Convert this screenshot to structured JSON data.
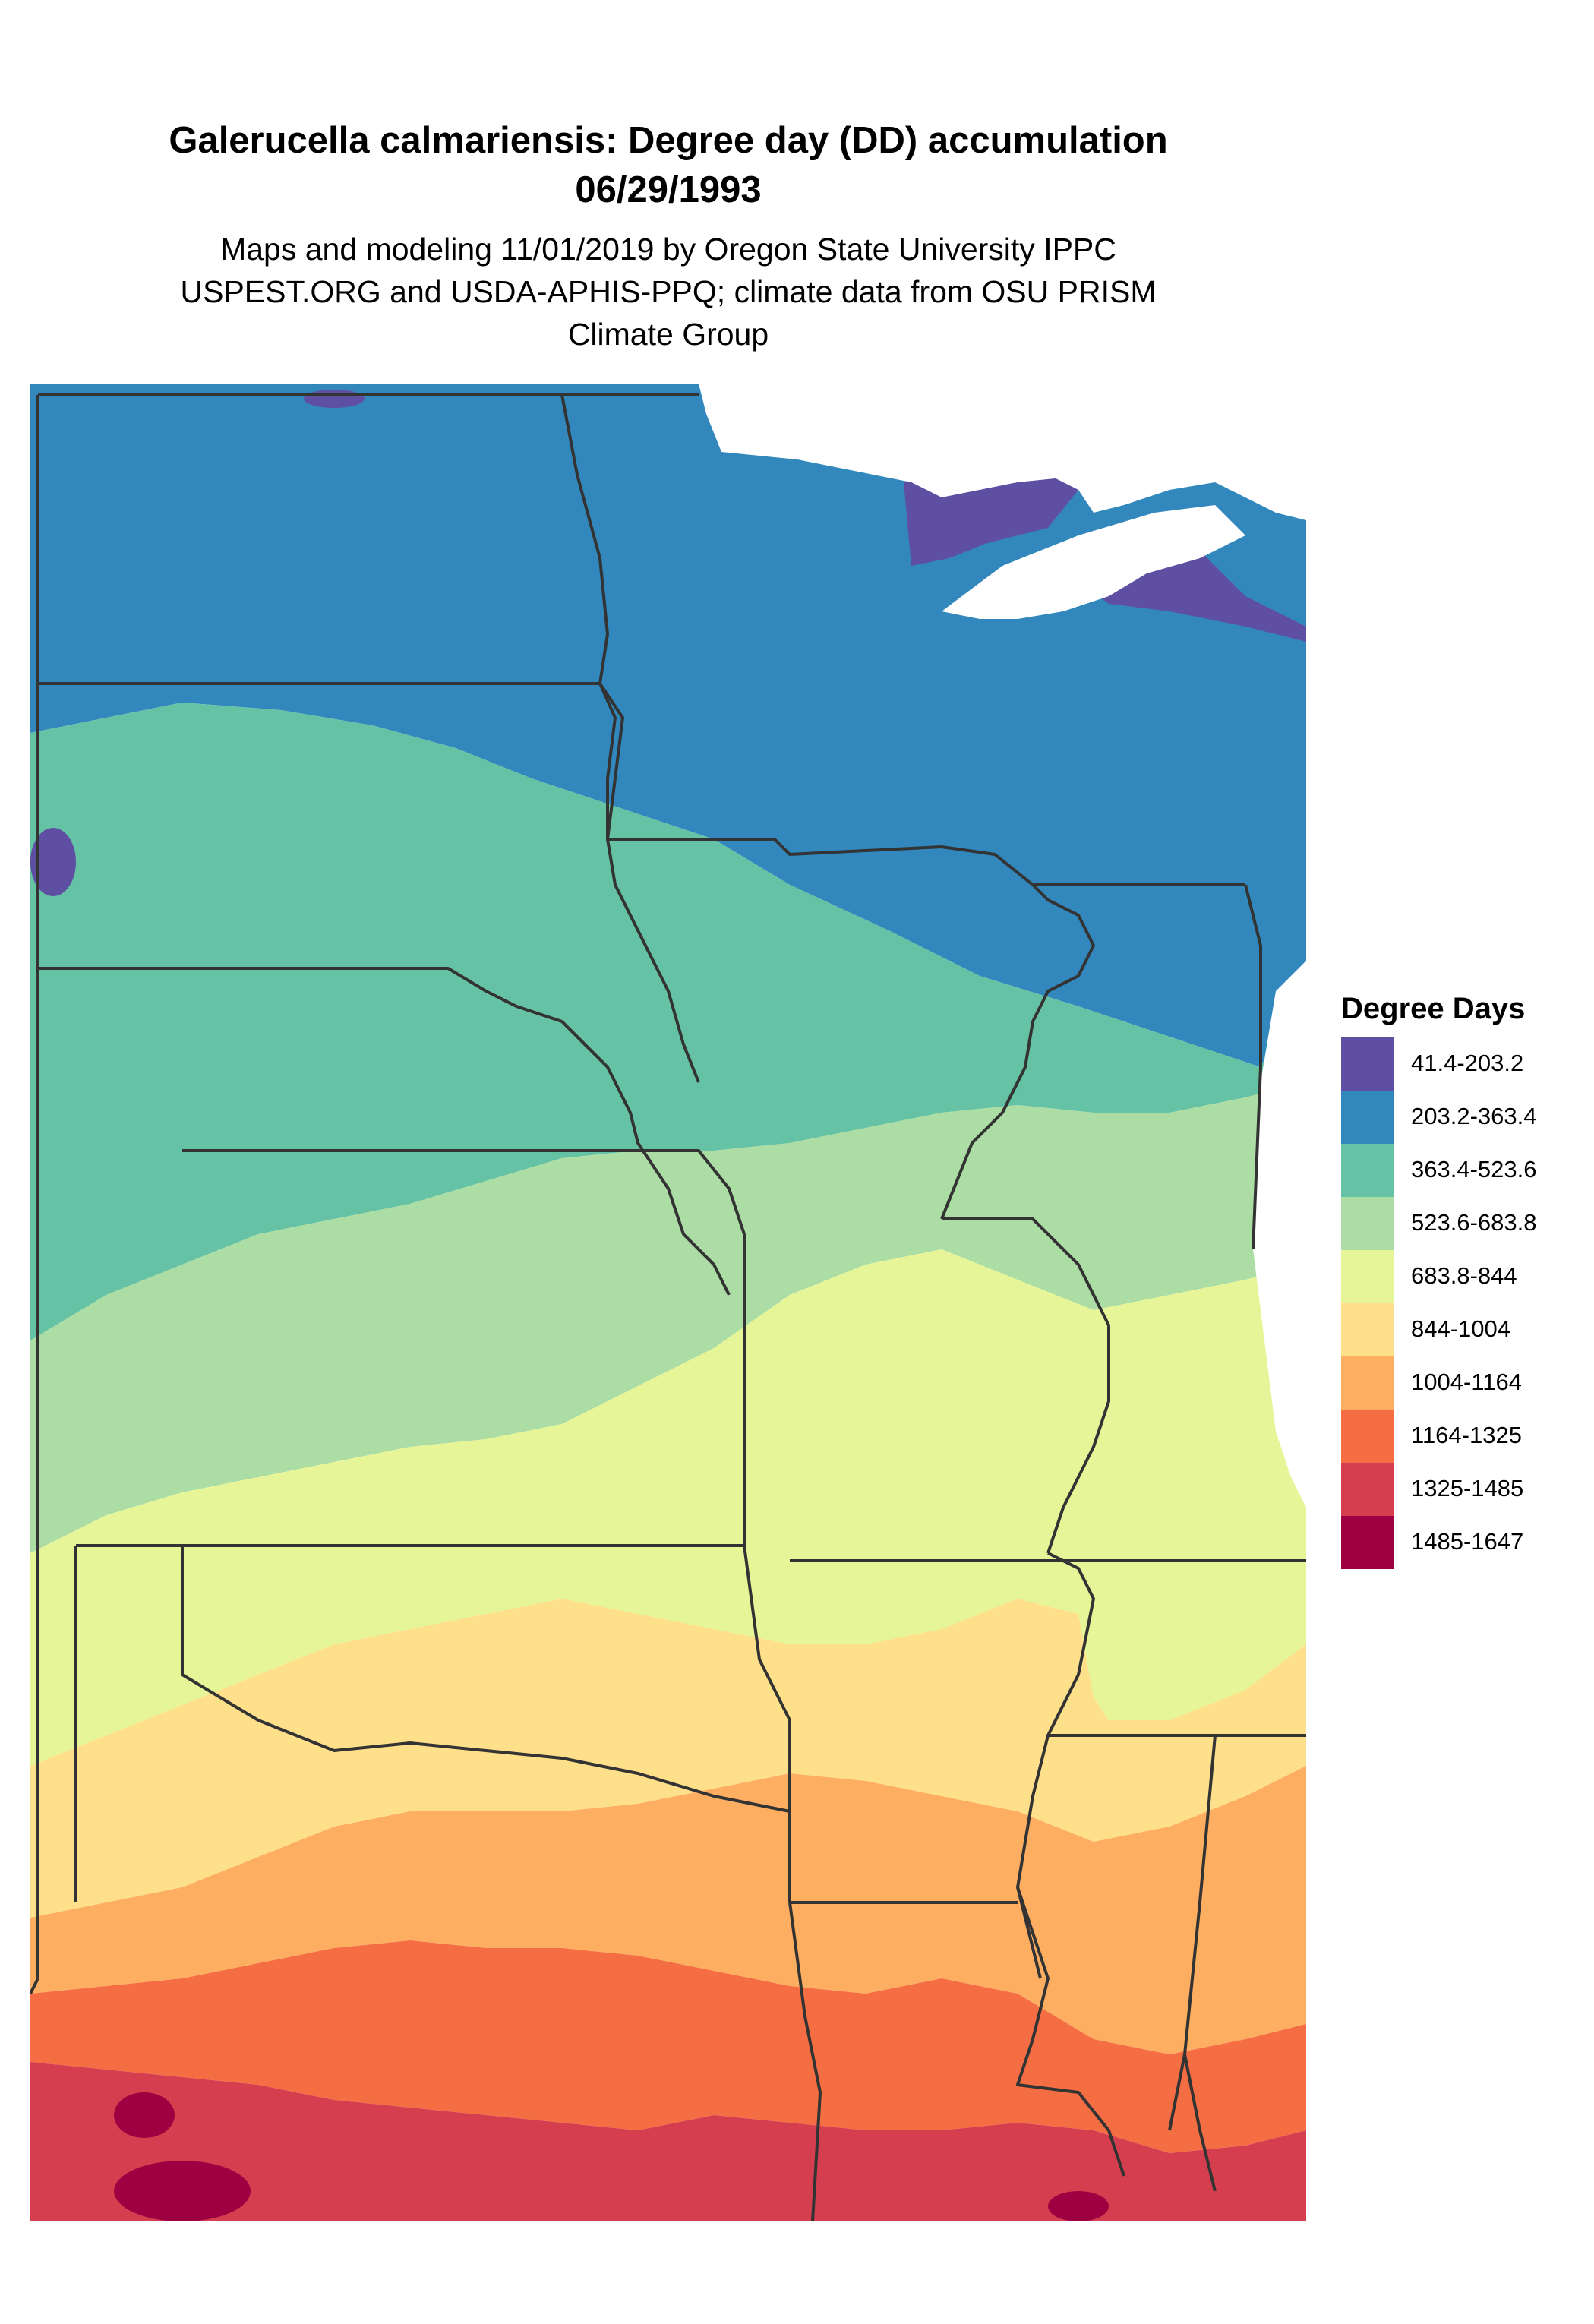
{
  "title": {
    "line1": "Galerucella calmariensis: Degree day (DD) accumulation",
    "line2": "06/29/1993"
  },
  "subtitle": {
    "line1": "Maps and modeling 11/01/2019 by Oregon State University IPPC",
    "line2": "USPEST.ORG and USDA-APHIS-PPQ; climate data from OSU PRISM",
    "line3": "Climate Group"
  },
  "legend": {
    "title": "Degree Days",
    "items": [
      {
        "label": "41.4-203.2",
        "color": "#5E4FA2"
      },
      {
        "label": "203.2-363.4",
        "color": "#3288BD"
      },
      {
        "label": "363.4-523.6",
        "color": "#66C2A5"
      },
      {
        "label": "523.6-683.8",
        "color": "#ABDDA4"
      },
      {
        "label": "683.8-844",
        "color": "#E6F598"
      },
      {
        "label": "844-1004",
        "color": "#FEE08B"
      },
      {
        "label": "1004-1164",
        "color": "#FDAE61"
      },
      {
        "label": "1164-1325",
        "color": "#F46D43"
      },
      {
        "label": "1325-1485",
        "color": "#D53E4F"
      },
      {
        "label": "1485-1647",
        "color": "#9E0142"
      }
    ]
  },
  "map": {
    "region": "Central United States",
    "border_color": "#333333",
    "water_color": "#ffffff"
  }
}
